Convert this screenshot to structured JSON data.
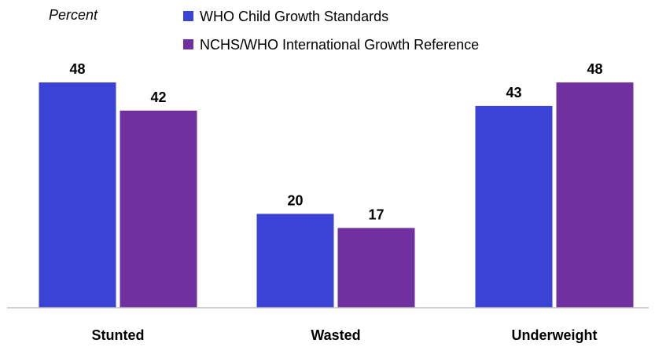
{
  "chart_data": {
    "type": "bar",
    "ylabel": "Percent",
    "xlabel": "",
    "categories": [
      "Stunted",
      "Wasted",
      "Underweight"
    ],
    "series": [
      {
        "name": "WHO Child Growth Standards",
        "color": "#3b43d6",
        "values": [
          48,
          20,
          43
        ]
      },
      {
        "name": "NCHS/WHO International Growth Reference",
        "color": "#7030a0",
        "values": [
          42,
          17,
          48
        ]
      }
    ],
    "ylim": [
      0,
      50
    ],
    "grid": false,
    "legend_position": "top"
  }
}
